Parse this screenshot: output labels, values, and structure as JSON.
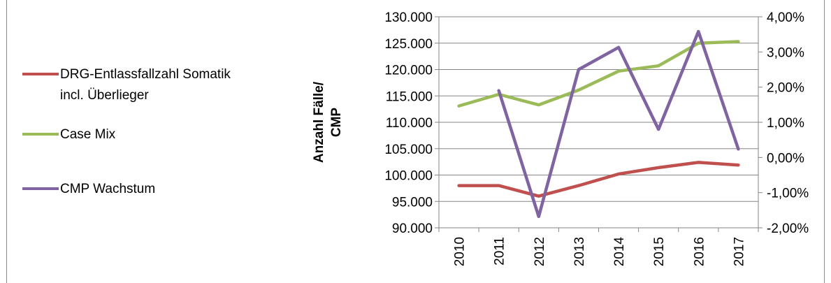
{
  "chart_data": {
    "type": "line",
    "categories": [
      "2010",
      "2011",
      "2012",
      "2013",
      "2014",
      "2015",
      "2016",
      "2017"
    ],
    "ylabel": "Anzahl Fälle/\nCMP",
    "y_left": {
      "min": 90000,
      "max": 130000,
      "step": 5000,
      "tick_labels": [
        "90.000",
        "95.000",
        "100.000",
        "105.000",
        "110.000",
        "115.000",
        "120.000",
        "125.000",
        "130.000"
      ]
    },
    "y_right": {
      "min": -0.02,
      "max": 0.04,
      "step": 0.01,
      "tick_labels": [
        "-2,00%",
        "-1,00%",
        "0,00%",
        "1,00%",
        "2,00%",
        "3,00%",
        "4,00%"
      ]
    },
    "grid": true,
    "legend_position": "left",
    "series": [
      {
        "name": "DRG-Entlassfallzahl Somatik\nincl. Überlieger",
        "axis": "left",
        "color": "#c0504d",
        "values": [
          98000,
          98000,
          96000,
          98000,
          100200,
          101400,
          102400,
          101900
        ]
      },
      {
        "name": "Case Mix",
        "axis": "left",
        "color": "#9bbb59",
        "values": [
          113100,
          115300,
          113300,
          116100,
          119700,
          120700,
          125000,
          125300
        ]
      },
      {
        "name": "CMP Wachstum",
        "axis": "right",
        "color": "#8064a2",
        "values": [
          null,
          0.019,
          -0.0168,
          0.025,
          0.0313,
          0.008,
          0.0358,
          0.0024
        ]
      }
    ]
  }
}
